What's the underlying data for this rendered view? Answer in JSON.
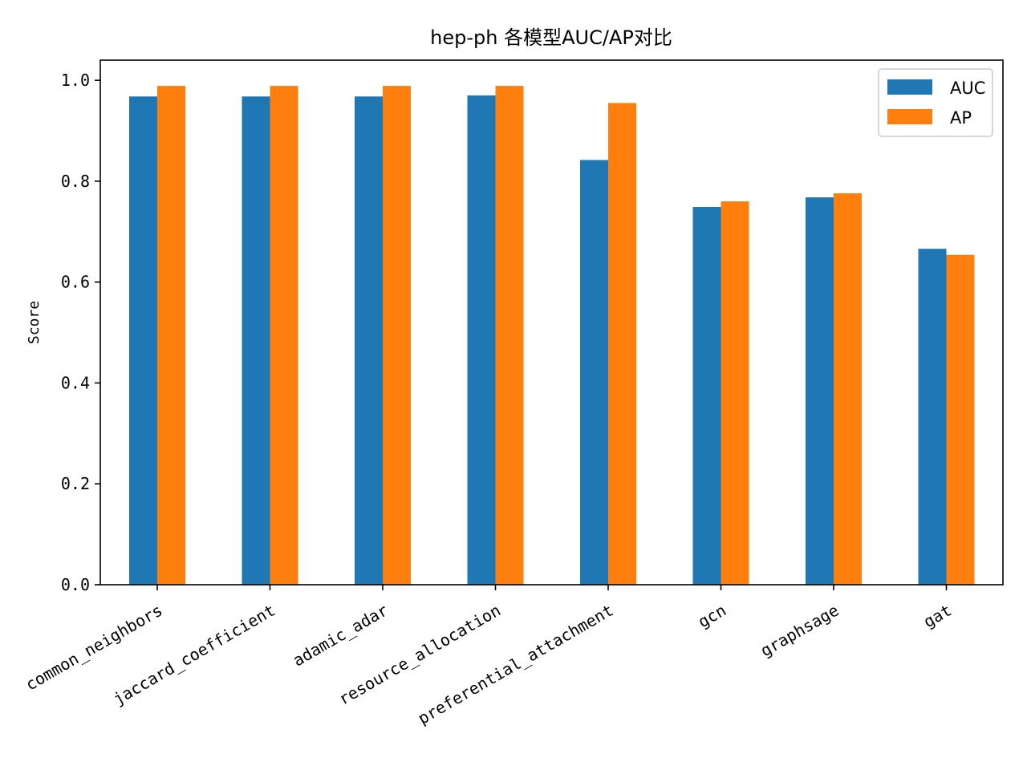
{
  "chart_data": {
    "type": "bar",
    "title": "hep-ph 各模型AUC/AP对比",
    "xlabel": "",
    "ylabel": "Score",
    "ylim": [
      0,
      1.04
    ],
    "yticks": [
      "0.0",
      "0.2",
      "0.4",
      "0.6",
      "0.8",
      "1.0"
    ],
    "categories": [
      "common_neighbors",
      "jaccard_coefficient",
      "adamic_adar",
      "resource_allocation",
      "preferential_attachment",
      "gcn",
      "graphsage",
      "gat"
    ],
    "series": [
      {
        "name": "AUC",
        "color": "#1f77b4",
        "values": [
          0.968,
          0.968,
          0.968,
          0.97,
          0.842,
          0.749,
          0.768,
          0.666
        ]
      },
      {
        "name": "AP",
        "color": "#ff7f0e",
        "values": [
          0.989,
          0.989,
          0.989,
          0.989,
          0.955,
          0.76,
          0.776,
          0.654
        ]
      }
    ],
    "legend_position": "top-right",
    "grid": false
  }
}
